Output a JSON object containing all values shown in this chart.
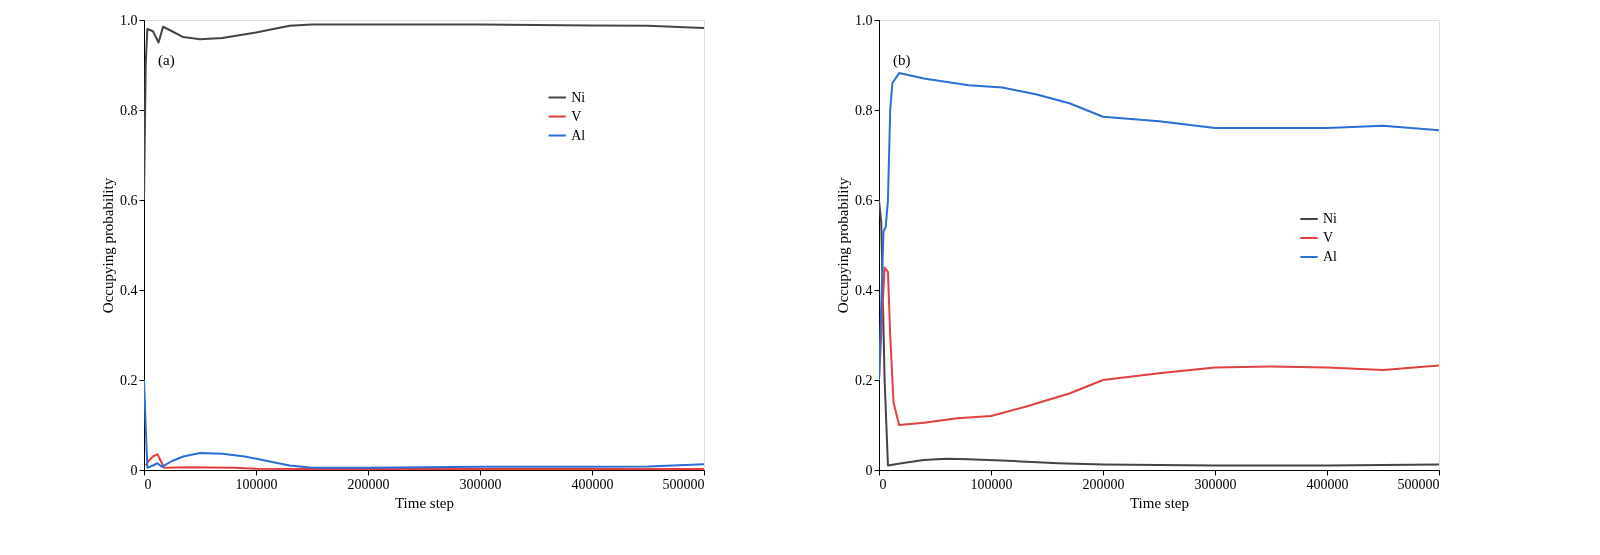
{
  "chart_data": [
    {
      "type": "line",
      "xlabel": "Time step",
      "ylabel": "Occupying probability",
      "annotations": [
        "(a)"
      ],
      "xlim": [
        0,
        500000
      ],
      "xticks": [
        0,
        100000,
        200000,
        300000,
        400000,
        500000
      ],
      "ylim": [
        0,
        1.0
      ],
      "yticks": [
        0,
        {
          "value": 0.2,
          "label": "0.2"
        },
        {
          "value": 0.4,
          "label": "0.4"
        },
        {
          "value": 0.6,
          "label": "0.6"
        },
        {
          "value": 0.8,
          "label": "0.8"
        },
        {
          "value": 1.0,
          "label": "1.0"
        }
      ],
      "grid": false,
      "legend": "top right",
      "marker": "none",
      "line_style": "solid",
      "series": [
        {
          "name": "Ni",
          "color": "#444444",
          "x": [
            0,
            1500,
            3000,
            8000,
            13000,
            17000,
            25000,
            35000,
            50000,
            70000,
            100000,
            130000,
            150000,
            200000,
            300000,
            400000,
            450000,
            500000
          ],
          "values": [
            0.6,
            0.9,
            0.98,
            0.975,
            0.95,
            0.985,
            0.975,
            0.962,
            0.957,
            0.96,
            0.972,
            0.987,
            0.99,
            0.99,
            0.99,
            0.988,
            0.987,
            0.982
          ]
        },
        {
          "name": "V",
          "color": "#e04040",
          "x": [
            1500,
            4000,
            8000,
            12000,
            15000,
            18000,
            40000,
            80000,
            100000,
            150000,
            300000,
            500000
          ],
          "values": [
            0.01,
            0.02,
            0.03,
            0.035,
            0.02,
            0.005,
            0.006,
            0.005,
            0.003,
            0.002,
            0.002,
            0.002
          ]
        },
        {
          "name": "Al",
          "color": "#2a6fd6",
          "x": [
            0,
            1500,
            3000,
            8000,
            12000,
            16000,
            25000,
            35000,
            50000,
            70000,
            90000,
            110000,
            130000,
            150000,
            200000,
            300000,
            400000,
            450000,
            500000
          ],
          "values": [
            0.2,
            0.1,
            0.005,
            0.01,
            0.015,
            0.007,
            0.02,
            0.03,
            0.038,
            0.036,
            0.03,
            0.02,
            0.01,
            0.005,
            0.005,
            0.007,
            0.007,
            0.008,
            0.013
          ]
        }
      ]
    },
    {
      "type": "line",
      "xlabel": "Time step",
      "ylabel": "Occupying probability",
      "annotations": [
        "(b)"
      ],
      "xlim": [
        0,
        500000
      ],
      "xticks": [
        0,
        100000,
        200000,
        300000,
        400000,
        500000
      ],
      "ylim": [
        0,
        1.0
      ],
      "yticks": [
        0,
        {
          "value": 0.2,
          "label": "0.2"
        },
        {
          "value": 0.4,
          "label": "0.4"
        },
        {
          "value": 0.6,
          "label": "0.6"
        },
        {
          "value": 0.8,
          "label": "0.8"
        },
        {
          "value": 1.0,
          "label": "1.0"
        }
      ],
      "grid": false,
      "legend": "right",
      "marker": "none",
      "line_style": "solid",
      "series": [
        {
          "name": "Ni",
          "color": "#444444",
          "x": [
            0,
            2000,
            5000,
            8000,
            20000,
            40000,
            60000,
            80000,
            120000,
            160000,
            200000,
            300000,
            400000,
            500000
          ],
          "values": [
            0.6,
            0.55,
            0.2,
            0.01,
            0.015,
            0.022,
            0.025,
            0.024,
            0.02,
            0.015,
            0.012,
            0.01,
            0.01,
            0.012
          ]
        },
        {
          "name": "V",
          "color": "#e04040",
          "x": [
            0,
            5000,
            8000,
            10000,
            13000,
            18000,
            40000,
            70000,
            100000,
            130000,
            170000,
            200000,
            250000,
            300000,
            350000,
            400000,
            450000,
            500000
          ],
          "values": [
            0.2,
            0.45,
            0.44,
            0.3,
            0.15,
            0.1,
            0.105,
            0.115,
            0.12,
            0.14,
            0.17,
            0.2,
            0.215,
            0.228,
            0.23,
            0.228,
            0.222,
            0.232
          ]
        },
        {
          "name": "Al",
          "color": "#2a6fd6",
          "x": [
            0,
            4000,
            6000,
            8000,
            10000,
            12000,
            18000,
            40000,
            80000,
            110000,
            140000,
            170000,
            200000,
            250000,
            300000,
            350000,
            400000,
            450000,
            500000
          ],
          "values": [
            0.2,
            0.53,
            0.54,
            0.6,
            0.8,
            0.86,
            0.882,
            0.87,
            0.855,
            0.85,
            0.835,
            0.815,
            0.785,
            0.775,
            0.76,
            0.76,
            0.76,
            0.765,
            0.755
          ]
        }
      ]
    }
  ]
}
